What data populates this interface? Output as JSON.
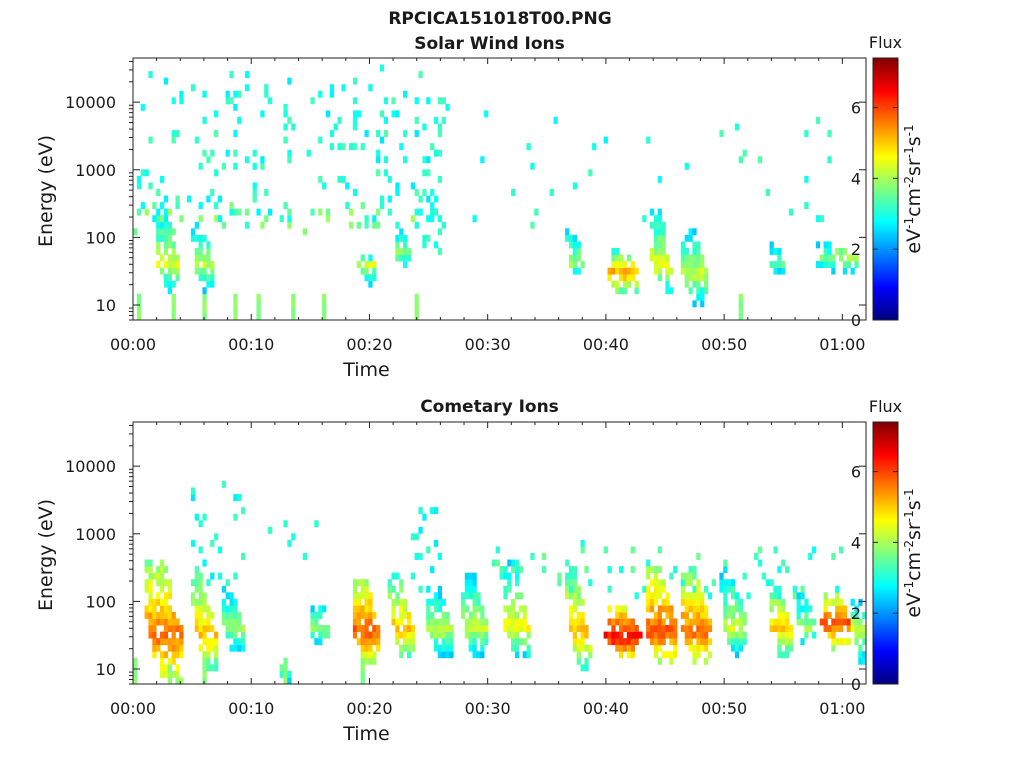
{
  "figure": {
    "title": "RPCICA151018T00.PNG"
  },
  "colorscale": [
    "#00007f",
    "#0000ff",
    "#007fff",
    "#00ffff",
    "#7fff7f",
    "#ffff00",
    "#ff7f00",
    "#ff0000",
    "#7f0000"
  ],
  "chart_data": [
    {
      "type": "heatmap",
      "title": "Solar Wind Ions",
      "xlabel": "Time",
      "ylabel": "Energy (eV)",
      "x_ticks": [
        "00:00",
        "00:10",
        "00:20",
        "00:30",
        "00:40",
        "00:50",
        "01:00"
      ],
      "x_tick_minutes": [
        0,
        10,
        20,
        30,
        40,
        50,
        60
      ],
      "xlim_minutes": [
        0,
        62
      ],
      "y_scale": "log",
      "ylim": [
        6,
        45000
      ],
      "y_ticks": [
        10,
        100,
        1000,
        10000
      ],
      "y_tick_labels": [
        "10",
        "100",
        "1000",
        "10000"
      ],
      "colorbar": {
        "title": "Flux",
        "label": "eV-1cm-2sr-1s-1",
        "range": [
          0,
          7.4
        ],
        "ticks": [
          "0",
          "2",
          "4",
          "6"
        ]
      },
      "scatter_regions": [
        {
          "t": [
            0.5,
            26.5
          ],
          "e": [
            150,
            30000
          ],
          "count": 190,
          "flux": [
            2.6,
            3.4
          ]
        },
        {
          "t": [
            24.0,
            26.0
          ],
          "e": [
            60,
            1000
          ],
          "count": 24,
          "flux": [
            2.6,
            3.3
          ]
        },
        {
          "t": [
            26.0,
            61.0
          ],
          "e": [
            150,
            10000
          ],
          "count": 34,
          "flux": [
            2.7,
            3.4
          ]
        },
        {
          "t": [
            0,
            28
          ],
          "e": [
            130,
            300
          ],
          "count": 30,
          "flux": [
            3.5,
            4.0
          ]
        }
      ],
      "bursts": [
        {
          "t": 3.0,
          "e_peak": 40,
          "e_top": 300,
          "e_bottom": 15,
          "width": 1.4,
          "flux": 4.6
        },
        {
          "t": 6.0,
          "e_peak": 40,
          "e_top": 200,
          "e_bottom": 15,
          "width": 1.2,
          "flux": 4.4
        },
        {
          "t": 19.8,
          "e_peak": 40,
          "e_top": 60,
          "e_bottom": 20,
          "width": 1.0,
          "flux": 4.5
        },
        {
          "t": 22.8,
          "e_peak": 60,
          "e_top": 150,
          "e_bottom": 30,
          "width": 0.8,
          "flux": 4.2
        },
        {
          "t": 37.5,
          "e_peak": 40,
          "e_top": 200,
          "e_bottom": 25,
          "width": 0.8,
          "flux": 4.2
        },
        {
          "t": 41.5,
          "e_peak": 30,
          "e_top": 60,
          "e_bottom": 15,
          "width": 2.4,
          "flux": 5.6
        },
        {
          "t": 44.8,
          "e_peak": 40,
          "e_top": 250,
          "e_bottom": 15,
          "width": 1.4,
          "flux": 4.8
        },
        {
          "t": 47.5,
          "e_peak": 30,
          "e_top": 150,
          "e_bottom": 10,
          "width": 1.6,
          "flux": 4.5
        },
        {
          "t": 54.5,
          "e_peak": 40,
          "e_top": 120,
          "e_bottom": 25,
          "width": 0.8,
          "flux": 3.8
        },
        {
          "t": 58.5,
          "e_peak": 50,
          "e_top": 120,
          "e_bottom": 25,
          "width": 1.2,
          "flux": 3.9
        },
        {
          "t": 60.3,
          "e_peak": 55,
          "e_top": 80,
          "e_bottom": 30,
          "width": 1.6,
          "flux": 4.6
        }
      ],
      "low_streaks": [
        0.5,
        3.5,
        6.0,
        8.5,
        10.5,
        13.5,
        16.0,
        24.0,
        51.5
      ]
    },
    {
      "type": "heatmap",
      "title": "Cometary Ions",
      "xlabel": "Time",
      "ylabel": "Energy (eV)",
      "x_ticks": [
        "00:00",
        "00:10",
        "00:20",
        "00:30",
        "00:40",
        "00:50",
        "01:00"
      ],
      "x_tick_minutes": [
        0,
        10,
        20,
        30,
        40,
        50,
        60
      ],
      "xlim_minutes": [
        0,
        62
      ],
      "y_scale": "log",
      "ylim": [
        6,
        45000
      ],
      "y_ticks": [
        10,
        100,
        1000,
        10000
      ],
      "y_tick_labels": [
        "10",
        "100",
        "1000",
        "10000"
      ],
      "colorbar": {
        "title": "Flux",
        "label": "eV-1cm-2sr-1s-1",
        "range": [
          0,
          7.4
        ],
        "ticks": [
          "0",
          "2",
          "4",
          "6"
        ]
      },
      "scatter_regions": [
        {
          "t": [
            5.0,
            9.5
          ],
          "e": [
            150,
            6000
          ],
          "count": 26,
          "flux": [
            2.6,
            3.3
          ]
        },
        {
          "t": [
            23.5,
            26.0
          ],
          "e": [
            100,
            2500
          ],
          "count": 18,
          "flux": [
            2.6,
            3.3
          ]
        },
        {
          "t": [
            30.0,
            60.0
          ],
          "e": [
            120,
            700
          ],
          "count": 70,
          "flux": [
            2.8,
            3.6
          ]
        },
        {
          "t": [
            11.0,
            16.0
          ],
          "e": [
            80,
            2000
          ],
          "count": 8,
          "flux": [
            2.8,
            3.2
          ]
        }
      ],
      "bursts": [
        {
          "t": 2.8,
          "e_peak": 30,
          "e_top": 400,
          "e_bottom": 6,
          "width": 2.6,
          "flux": 6.0
        },
        {
          "t": 6.2,
          "e_peak": 30,
          "e_top": 300,
          "e_bottom": 10,
          "width": 1.4,
          "flux": 5.4
        },
        {
          "t": 8.5,
          "e_peak": 40,
          "e_top": 200,
          "e_bottom": 15,
          "width": 1.2,
          "flux": 4.2
        },
        {
          "t": 12.8,
          "e_peak": 10,
          "e_top": 15,
          "e_bottom": 6,
          "width": 0.5,
          "flux": 4.0
        },
        {
          "t": 15.8,
          "e_peak": 40,
          "e_top": 150,
          "e_bottom": 15,
          "width": 1.2,
          "flux": 4.0
        },
        {
          "t": 19.8,
          "e_peak": 35,
          "e_top": 200,
          "e_bottom": 12,
          "width": 1.8,
          "flux": 6.2
        },
        {
          "t": 22.8,
          "e_peak": 40,
          "e_top": 250,
          "e_bottom": 15,
          "width": 1.4,
          "flux": 5.4
        },
        {
          "t": 26.0,
          "e_peak": 40,
          "e_top": 150,
          "e_bottom": 15,
          "width": 1.6,
          "flux": 4.5
        },
        {
          "t": 29.0,
          "e_peak": 40,
          "e_top": 300,
          "e_bottom": 15,
          "width": 1.6,
          "flux": 4.5
        },
        {
          "t": 32.5,
          "e_peak": 40,
          "e_top": 400,
          "e_bottom": 15,
          "width": 1.6,
          "flux": 4.8
        },
        {
          "t": 37.8,
          "e_peak": 35,
          "e_top": 300,
          "e_bottom": 10,
          "width": 1.2,
          "flux": 5.4
        },
        {
          "t": 41.5,
          "e_peak": 30,
          "e_top": 80,
          "e_bottom": 15,
          "width": 2.6,
          "flux": 6.8
        },
        {
          "t": 44.8,
          "e_peak": 35,
          "e_top": 300,
          "e_bottom": 12,
          "width": 2.2,
          "flux": 6.2
        },
        {
          "t": 47.8,
          "e_peak": 35,
          "e_top": 250,
          "e_bottom": 12,
          "width": 2.2,
          "flux": 6.0
        },
        {
          "t": 51.0,
          "e_peak": 40,
          "e_top": 300,
          "e_bottom": 15,
          "width": 1.6,
          "flux": 4.5
        },
        {
          "t": 54.8,
          "e_peak": 40,
          "e_top": 200,
          "e_bottom": 15,
          "width": 1.4,
          "flux": 5.2
        },
        {
          "t": 57.0,
          "e_peak": 40,
          "e_top": 150,
          "e_bottom": 20,
          "width": 1.2,
          "flux": 4.3
        },
        {
          "t": 59.5,
          "e_peak": 50,
          "e_top": 120,
          "e_bottom": 20,
          "width": 2.0,
          "flux": 6.3
        },
        {
          "t": 61.5,
          "e_peak": 40,
          "e_top": 100,
          "e_bottom": 12,
          "width": 1.0,
          "flux": 4.6
        }
      ],
      "low_streaks": [
        0.3,
        3.0,
        6.0,
        12.8,
        19.5
      ]
    }
  ]
}
